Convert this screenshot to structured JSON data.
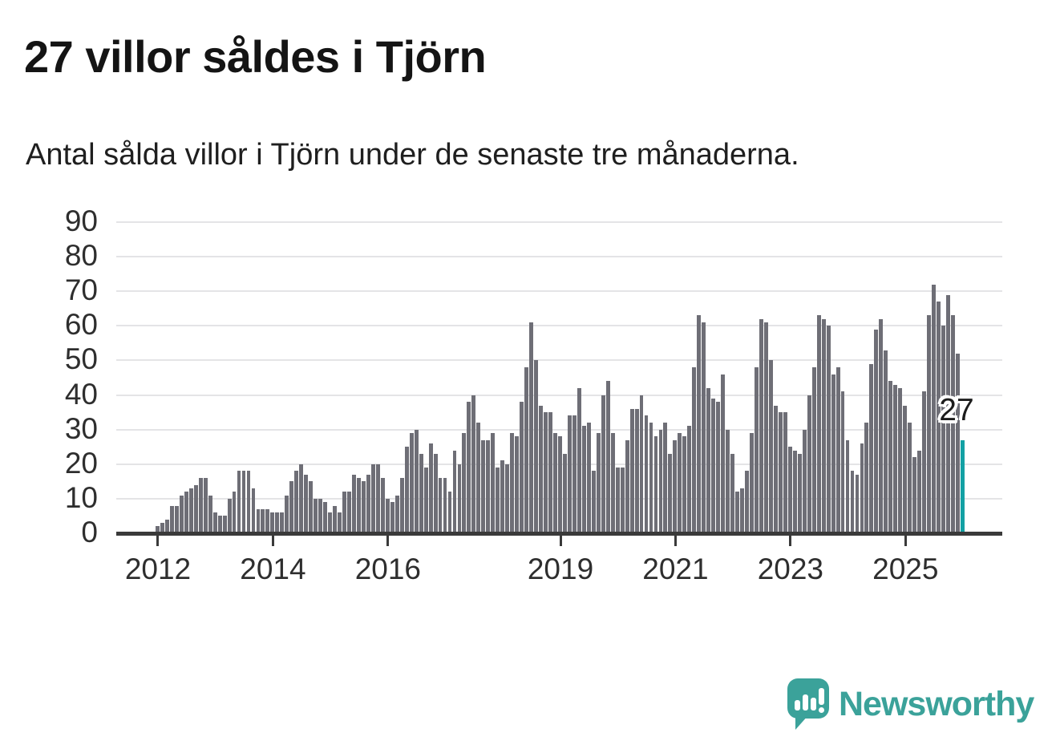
{
  "header": {
    "title": "27 villor såldes i Tjörn",
    "subtitle": "Antal sålda villor i Tjörn under de senaste tre månaderna."
  },
  "annotation": {
    "label": "27"
  },
  "branding": {
    "name": "Newsworthy"
  },
  "colors": {
    "background": "#ffffff",
    "bar": "#6e6e76",
    "highlight": "#13a1a4",
    "gridline": "#e4e4e6",
    "axis": "#3a3a3a",
    "text": "#2e2e2e",
    "title_text": "#141414",
    "annotation_text": "#1c1c1c",
    "logo": "#3ba29a"
  },
  "chart_data": {
    "type": "bar",
    "title": "27 villor såldes i Tjörn",
    "subtitle": "Antal sålda villor i Tjörn under de senaste tre månaderna.",
    "xlabel": "",
    "ylabel": "",
    "ylim": [
      0,
      90
    ],
    "grid": true,
    "y_ticks": [
      0,
      10,
      20,
      30,
      40,
      50,
      60,
      70,
      80,
      90
    ],
    "x_ticks": [
      {
        "label": "2012",
        "index": 0
      },
      {
        "label": "2014",
        "index": 24
      },
      {
        "label": "2016",
        "index": 48
      },
      {
        "label": "2019",
        "index": 84
      },
      {
        "label": "2021",
        "index": 108
      },
      {
        "label": "2023",
        "index": 132
      },
      {
        "label": "2025",
        "index": 156
      }
    ],
    "values": [
      2,
      3,
      4,
      8,
      8,
      11,
      12,
      13,
      14,
      16,
      16,
      11,
      6,
      5,
      5,
      10,
      12,
      18,
      18,
      18,
      13,
      7,
      7,
      7,
      6,
      6,
      6,
      11,
      15,
      18,
      20,
      17,
      15,
      10,
      10,
      9,
      6,
      8,
      6,
      12,
      12,
      17,
      16,
      15,
      17,
      20,
      20,
      16,
      10,
      9,
      11,
      16,
      25,
      29,
      30,
      23,
      19,
      26,
      23,
      16,
      16,
      12,
      24,
      20,
      29,
      38,
      40,
      32,
      27,
      27,
      29,
      19,
      21,
      20,
      29,
      28,
      38,
      48,
      61,
      50,
      37,
      35,
      35,
      29,
      28,
      23,
      34,
      34,
      42,
      31,
      32,
      18,
      29,
      40,
      44,
      29,
      19,
      19,
      27,
      36,
      36,
      40,
      34,
      32,
      28,
      30,
      32,
      23,
      27,
      29,
      28,
      31,
      48,
      63,
      61,
      42,
      39,
      38,
      46,
      30,
      23,
      12,
      13,
      18,
      29,
      48,
      62,
      61,
      50,
      37,
      35,
      35,
      25,
      24,
      23,
      30,
      40,
      48,
      63,
      62,
      60,
      46,
      48,
      41,
      27,
      18,
      17,
      26,
      32,
      49,
      59,
      62,
      53,
      44,
      43,
      42,
      37,
      32,
      22,
      24,
      41,
      63,
      72,
      67,
      60,
      69,
      63,
      52,
      27
    ],
    "highlight_last_value": 27,
    "legend": null
  }
}
